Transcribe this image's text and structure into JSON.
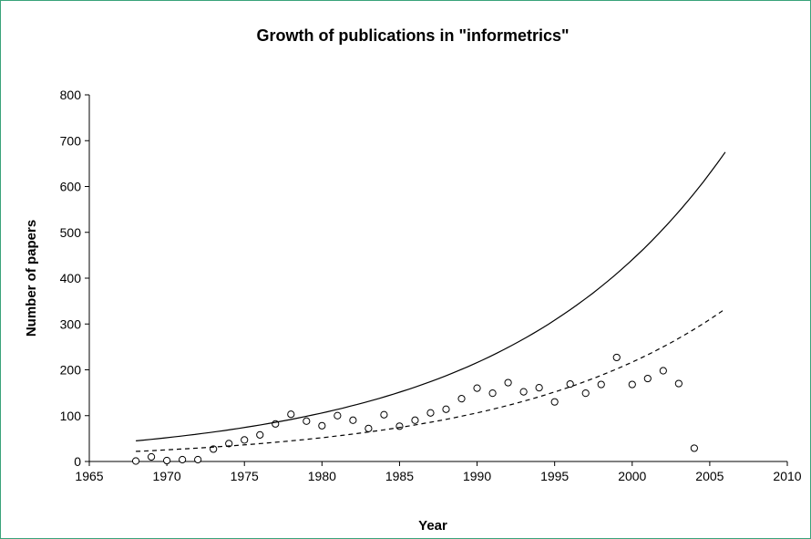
{
  "chart_data": {
    "type": "scatter",
    "title": "Growth of publications in \"informetrics\"",
    "xlabel": "Year",
    "ylabel": "Number of papers",
    "xlim": [
      1965,
      2010
    ],
    "ylim": [
      0,
      800
    ],
    "x_ticks": [
      1965,
      1970,
      1975,
      1980,
      1985,
      1990,
      1995,
      2000,
      2005,
      2010
    ],
    "y_ticks": [
      0,
      100,
      200,
      300,
      400,
      500,
      600,
      700,
      800
    ],
    "grid": false,
    "legend": "none",
    "series": [
      {
        "style": "markers",
        "marker": "open-circle",
        "x": [
          1968,
          1969,
          1970,
          1971,
          1972,
          1973,
          1974,
          1975,
          1976,
          1977,
          1978,
          1979,
          1980,
          1981,
          1982,
          1983,
          1984,
          1985,
          1986,
          1987,
          1988,
          1989,
          1990,
          1991,
          1992,
          1993,
          1994,
          1995,
          1996,
          1997,
          1998,
          1999,
          2000,
          2001,
          2002,
          2003,
          2004
        ],
        "values": [
          1,
          10,
          2,
          4,
          4,
          27,
          39,
          47,
          58,
          82,
          103,
          88,
          78,
          100,
          90,
          72,
          102,
          77,
          90,
          106,
          114,
          137,
          160,
          149,
          172,
          152,
          161,
          130,
          169,
          149,
          168,
          227,
          168,
          181,
          198,
          170,
          29
        ]
      },
      {
        "style": "solid-line",
        "curve": "exponential",
        "x": [
          1968,
          2006
        ],
        "values": [
          45,
          675
        ]
      },
      {
        "style": "dashed-line",
        "curve": "exponential",
        "x": [
          1968,
          2006
        ],
        "values": [
          22,
          333
        ]
      }
    ]
  },
  "colors": {
    "frame": "#3aa37a",
    "ink": "#000000",
    "background": "#ffffff"
  }
}
